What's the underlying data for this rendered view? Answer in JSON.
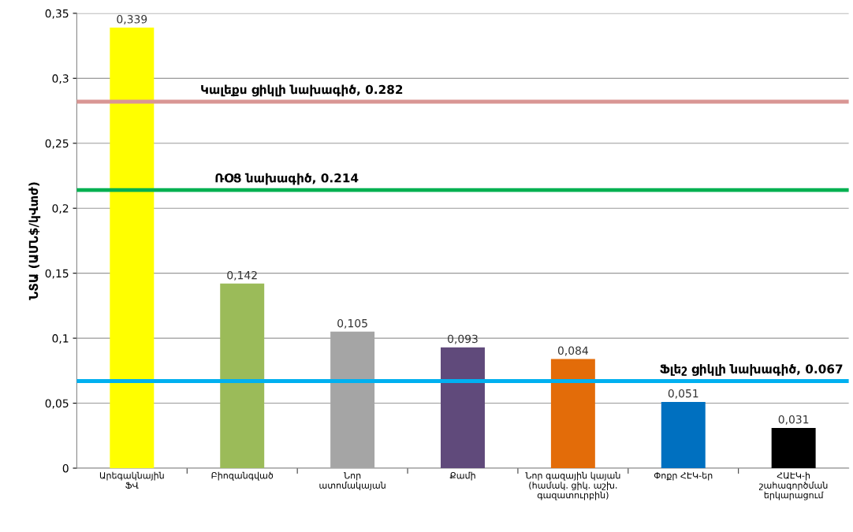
{
  "chart_data": {
    "type": "bar",
    "ylabel": "ՆՏԱ (ԱՄՆ$/կՎտժ)",
    "categories": [
      "Արեգակնային\nՖՎ",
      "Բիոզանգված",
      "Նոր\nատոմակայան",
      "Քամի",
      "Նոր գազային կայան\n(համակ. ցիկ. աշխ.\nգազատուրբին)",
      "Փոքր ՀԷԿ-եր",
      "ՀԱԷԿ-ի\nշահագործման\nերկարացում"
    ],
    "values": [
      0.339,
      0.142,
      0.105,
      0.093,
      0.084,
      0.051,
      0.031
    ],
    "colors": [
      "#ffff00",
      "#9bbb59",
      "#a5a5a5",
      "#604a7b",
      "#e36c09",
      "#0070c0",
      "#000000"
    ],
    "value_labels": [
      "0,339",
      "0,142",
      "0,105",
      "0,093",
      "0,084",
      "0,051",
      "0,031"
    ],
    "ylim": [
      0,
      0.35
    ],
    "yticks": [
      {
        "value": 0,
        "label": "0"
      },
      {
        "value": 0.05,
        "label": "0,05"
      },
      {
        "value": 0.1,
        "label": "0,1"
      },
      {
        "value": 0.15,
        "label": "0,15"
      },
      {
        "value": 0.2,
        "label": "0,2"
      },
      {
        "value": 0.25,
        "label": "0,25"
      },
      {
        "value": 0.3,
        "label": "0,3"
      },
      {
        "value": 0.35,
        "label": "0,35"
      }
    ],
    "grid": "y",
    "ref_lines": [
      {
        "axis": "y",
        "value": 0.282,
        "label": "Կալեքս ցիկլի նախագիծ, 0.282",
        "color": "#d99694"
      },
      {
        "axis": "y",
        "value": 0.214,
        "label": "ՌՕՑ նախագիծ, 0.214",
        "color": "#00b050"
      },
      {
        "axis": "y",
        "value": 0.067,
        "label": "Ֆլեշ ցիկլի նախագիծ, 0.067",
        "color": "#00b0f0"
      }
    ]
  }
}
